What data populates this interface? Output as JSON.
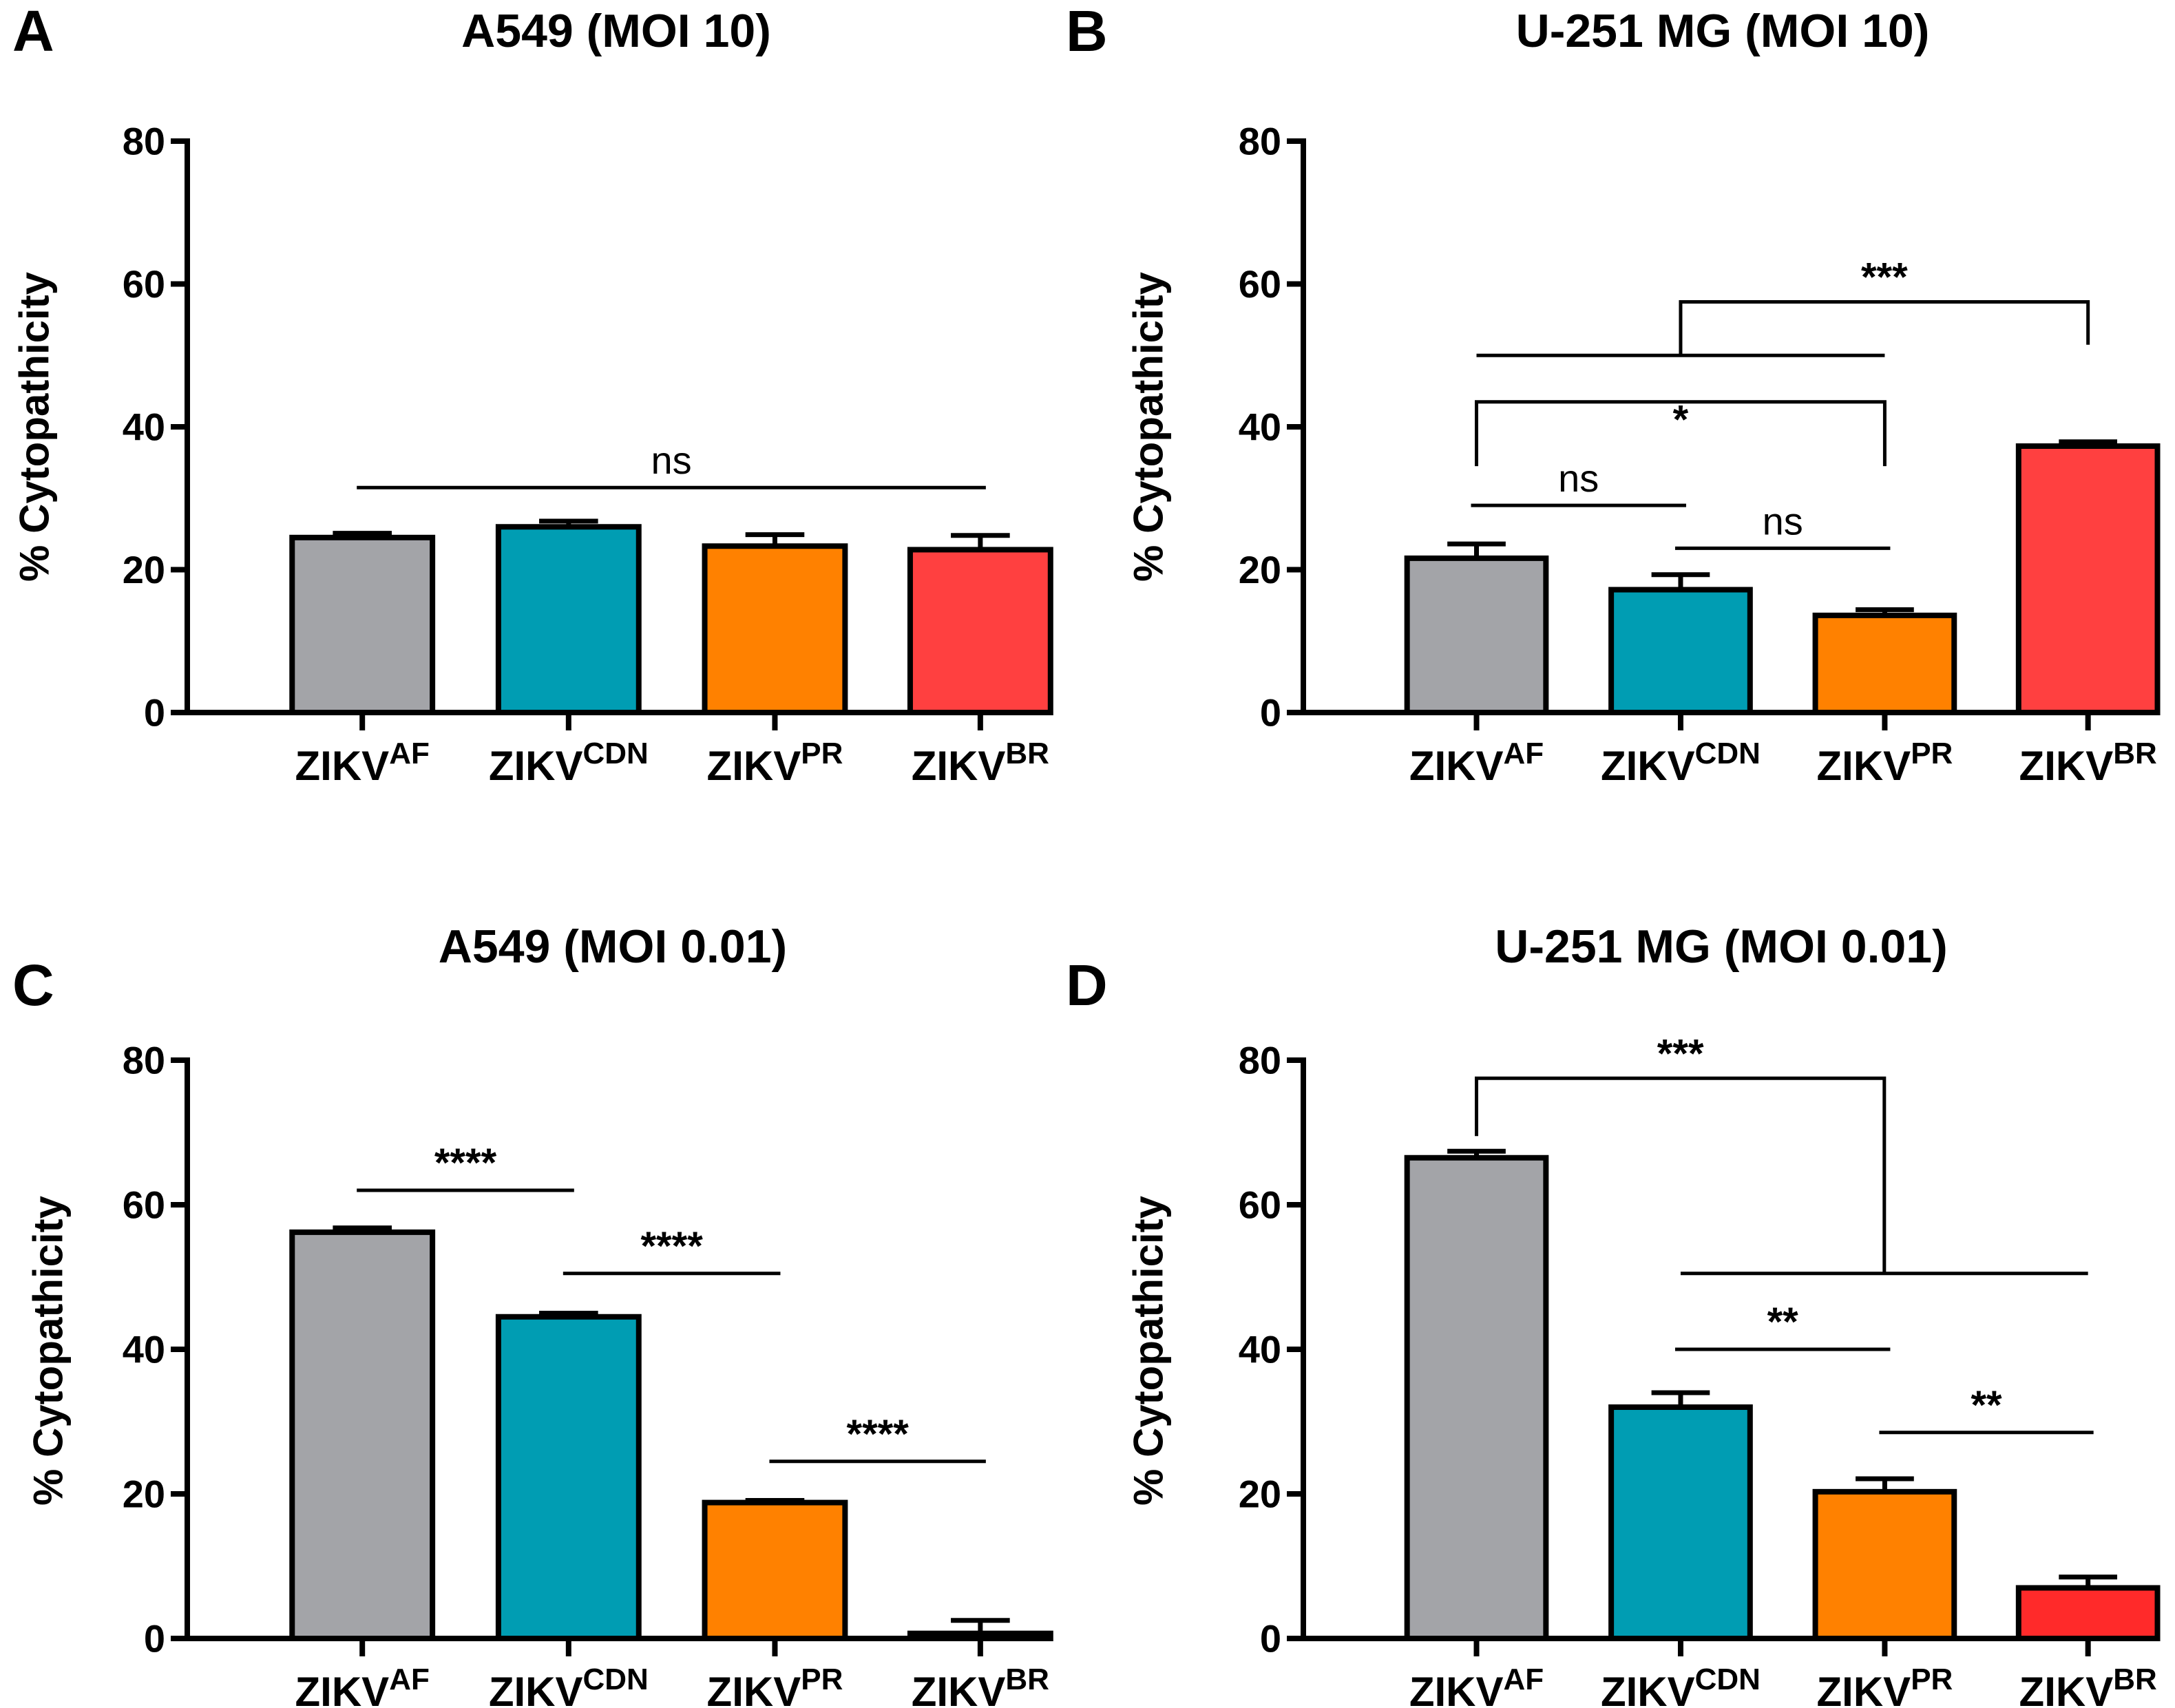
{
  "figure": {
    "colors": {
      "ZIKV_AF": "#a3a4a8",
      "ZIKV_CDN": "#009db3",
      "ZIKV_PR": "#ff8100",
      "ZIKV_BR_light": "#ff4040",
      "ZIKV_BR_dark": "#ff2a2a",
      "axis": "#000000"
    }
  },
  "chart_data": [
    {
      "panel": "A",
      "type": "bar",
      "title": "A549 (MOI 10)",
      "ylabel": "% Cytopathicity",
      "xlabel": "",
      "ylim": [
        0,
        80
      ],
      "yticks": [
        "0",
        "20",
        "40",
        "60",
        "80"
      ],
      "categories": [
        {
          "base": "ZIKV",
          "sup": "AF"
        },
        {
          "base": "ZIKV",
          "sup": "CDN"
        },
        {
          "base": "ZIKV",
          "sup": "PR"
        },
        {
          "base": "ZIKV",
          "sup": "BR"
        }
      ],
      "values": [
        24.5,
        26.0,
        23.3,
        22.8
      ],
      "errors": [
        0.6,
        0.8,
        1.6,
        2.0
      ],
      "bar_colors": [
        "#a3a4a8",
        "#009db3",
        "#ff8100",
        "#ff4040"
      ],
      "annotations": [
        {
          "label": "ns",
          "bold": false,
          "kind": "line",
          "from": 0,
          "to": 3,
          "y": 31.5
        }
      ]
    },
    {
      "panel": "B",
      "type": "bar",
      "title": "U-251 MG (MOI 10)",
      "ylabel": "% Cytopathicity",
      "xlabel": "",
      "ylim": [
        0,
        80
      ],
      "yticks": [
        "0",
        "20",
        "40",
        "60",
        "80"
      ],
      "categories": [
        {
          "base": "ZIKV",
          "sup": "AF"
        },
        {
          "base": "ZIKV",
          "sup": "CDN"
        },
        {
          "base": "ZIKV",
          "sup": "PR"
        },
        {
          "base": "ZIKV",
          "sup": "BR"
        }
      ],
      "values": [
        21.6,
        17.2,
        13.6,
        37.3
      ],
      "errors": [
        2.0,
        2.1,
        0.8,
        0.6
      ],
      "bar_colors": [
        "#a3a4a8",
        "#009db3",
        "#ff8100",
        "#ff4040"
      ],
      "annotations": [
        {
          "label": "ns",
          "bold": false,
          "kind": "line",
          "from": 0,
          "to": 1,
          "y": 29.0
        },
        {
          "label": "ns",
          "bold": false,
          "kind": "line",
          "from": 1,
          "to": 2,
          "y": 23.0
        },
        {
          "label": "*",
          "bold": true,
          "kind": "bracket",
          "from": 0,
          "to": 2,
          "y": 43.5,
          "drop_from": 34.5,
          "drop_to": 34.5
        },
        {
          "label": "***",
          "bold": true,
          "kind": "group",
          "from": 0,
          "to": 2,
          "y": 50.0,
          "target": 3,
          "top": 57.5,
          "drop_to": 51.5
        }
      ]
    },
    {
      "panel": "C",
      "type": "bar",
      "title": "A549 (MOI 0.01)",
      "ylabel": "% Cytopathicity",
      "xlabel": "",
      "ylim": [
        0,
        80
      ],
      "yticks": [
        "0",
        "20",
        "40",
        "60",
        "80"
      ],
      "categories": [
        {
          "base": "ZIKV",
          "sup": "AF"
        },
        {
          "base": "ZIKV",
          "sup": "CDN"
        },
        {
          "base": "ZIKV",
          "sup": "PR"
        },
        {
          "base": "ZIKV",
          "sup": "BR"
        }
      ],
      "values": [
        56.2,
        44.5,
        18.8,
        0.7
      ],
      "errors": [
        0.6,
        0.5,
        0.3,
        1.8
      ],
      "bar_colors": [
        "#a3a4a8",
        "#009db3",
        "#ff8100",
        "#ff4040"
      ],
      "annotations": [
        {
          "label": "****",
          "bold": true,
          "kind": "line",
          "from": 0,
          "to": 1,
          "y": 62.0
        },
        {
          "label": "****",
          "bold": true,
          "kind": "line",
          "from": 1,
          "to": 2,
          "y": 50.5
        },
        {
          "label": "****",
          "bold": true,
          "kind": "line",
          "from": 2,
          "to": 3,
          "y": 24.5
        }
      ]
    },
    {
      "panel": "D",
      "type": "bar",
      "title": "U-251 MG (MOI 0.01)",
      "ylabel": "% Cytopathicity",
      "xlabel": "",
      "ylim": [
        0,
        80
      ],
      "yticks": [
        "0",
        "20",
        "40",
        "60",
        "80"
      ],
      "categories": [
        {
          "base": "ZIKV",
          "sup": "AF"
        },
        {
          "base": "ZIKV",
          "sup": "CDN"
        },
        {
          "base": "ZIKV",
          "sup": "PR"
        },
        {
          "base": "ZIKV",
          "sup": "BR"
        }
      ],
      "values": [
        66.5,
        32.0,
        20.3,
        7.0
      ],
      "errors": [
        0.9,
        2.0,
        1.8,
        1.5
      ],
      "bar_colors": [
        "#a3a4a8",
        "#009db3",
        "#ff8100",
        "#ff2a2a"
      ],
      "annotations": [
        {
          "label": "**",
          "bold": true,
          "kind": "line",
          "from": 1,
          "to": 2,
          "y": 40.0
        },
        {
          "label": "**",
          "bold": true,
          "kind": "line",
          "from": 2,
          "to": 3,
          "y": 28.5
        },
        {
          "label": "***",
          "bold": true,
          "kind": "group",
          "from": 1,
          "to": 3,
          "y": 50.5,
          "target": 0,
          "top": 77.5,
          "drop_to": 69.5
        }
      ]
    }
  ]
}
